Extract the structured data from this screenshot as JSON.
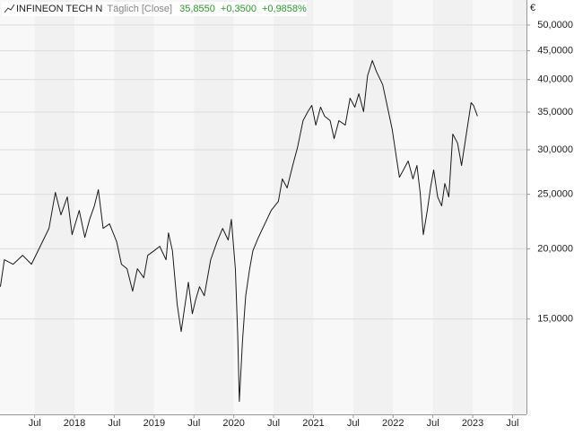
{
  "chart_data": {
    "type": "line",
    "title": "INFINEON TECH N",
    "subtitle": "Täglich [Close]",
    "annotations": [
      "35,8550",
      "+0,3500",
      "+0,9858%"
    ],
    "ylabel": "€",
    "log_scale": true,
    "grid": true,
    "xlim": [
      2017.065,
      2023.675
    ],
    "ylim": [
      10.15,
      55.4
    ],
    "xticks": [
      {
        "value": 2017.5,
        "label": "Jul"
      },
      {
        "value": 2018,
        "label": "2018"
      },
      {
        "value": 2018.5,
        "label": "Jul"
      },
      {
        "value": 2019,
        "label": "2019"
      },
      {
        "value": 2019.5,
        "label": "Jul"
      },
      {
        "value": 2020,
        "label": "2020"
      },
      {
        "value": 2020.5,
        "label": "Jul"
      },
      {
        "value": 2021,
        "label": "2021"
      },
      {
        "value": 2021.5,
        "label": "Jul"
      },
      {
        "value": 2022,
        "label": "2022"
      },
      {
        "value": 2022.5,
        "label": "Jul"
      },
      {
        "value": 2023,
        "label": "2023"
      },
      {
        "value": 2023.5,
        "label": "Jul"
      }
    ],
    "yticks": [
      {
        "value": 15,
        "label": "15,0000"
      },
      {
        "value": 20,
        "label": "20,0000"
      },
      {
        "value": 25,
        "label": "25,0000"
      },
      {
        "value": 30,
        "label": "30,0000"
      },
      {
        "value": 35,
        "label": "35,0000"
      },
      {
        "value": 40,
        "label": "40,0000"
      },
      {
        "value": 45,
        "label": "45,0000"
      },
      {
        "value": 50,
        "label": "50,0000"
      }
    ],
    "x": [
      2017.07,
      2017.12,
      2017.23,
      2017.35,
      2017.46,
      2017.57,
      2017.68,
      2017.76,
      2017.83,
      2017.91,
      2017.97,
      2018.06,
      2018.13,
      2018.19,
      2018.25,
      2018.3,
      2018.36,
      2018.44,
      2018.53,
      2018.59,
      2018.66,
      2018.73,
      2018.79,
      2018.87,
      2018.92,
      2019.0,
      2019.07,
      2019.15,
      2019.18,
      2019.23,
      2019.29,
      2019.34,
      2019.38,
      2019.43,
      2019.48,
      2019.52,
      2019.57,
      2019.63,
      2019.71,
      2019.79,
      2019.86,
      2019.93,
      2019.97,
      2020.02,
      2020.05,
      2020.07,
      2020.11,
      2020.15,
      2020.2,
      2020.24,
      2020.31,
      2020.39,
      2020.47,
      2020.56,
      2020.61,
      2020.67,
      2020.74,
      2020.8,
      2020.87,
      2020.93,
      2020.98,
      2021.03,
      2021.09,
      2021.14,
      2021.21,
      2021.26,
      2021.32,
      2021.4,
      2021.46,
      2021.52,
      2021.57,
      2021.63,
      2021.68,
      2021.74,
      2021.79,
      2021.87,
      2021.93,
      2021.99,
      2022.04,
      2022.08,
      2022.13,
      2022.19,
      2022.25,
      2022.3,
      2022.34,
      2022.38,
      2022.43,
      2022.47,
      2022.51,
      2022.56,
      2022.61,
      2022.65,
      2022.7,
      2022.75,
      2022.81,
      2022.86,
      2022.92,
      2022.98,
      2023.01,
      2023.06
    ],
    "series": [
      {
        "color": "#1a1a1a",
        "values": [
          17.12,
          19.12,
          18.77,
          19.47,
          18.77,
          20.2,
          21.74,
          25.19,
          22.98,
          24.73,
          21.19,
          23.4,
          20.96,
          22.56,
          23.84,
          25.47,
          21.74,
          22.15,
          20.58,
          18.77,
          18.43,
          16.81,
          18.43,
          17.76,
          19.47,
          19.84,
          20.2,
          19.12,
          21.35,
          19.84,
          15.91,
          14.25,
          15.62,
          17.44,
          15.33,
          16.2,
          17.12,
          16.5,
          19.12,
          20.58,
          21.74,
          20.73,
          22.56,
          18.43,
          13.99,
          10.7,
          13.73,
          16.5,
          18.43,
          19.84,
          20.96,
          22.15,
          23.4,
          24.28,
          26.62,
          25.66,
          28.13,
          30.27,
          33.8,
          35.07,
          35.98,
          33.19,
          35.72,
          34.43,
          33.8,
          31.41,
          33.8,
          33.19,
          37.06,
          35.72,
          37.74,
          35.07,
          40.62,
          43.24,
          41.38,
          39.16,
          35.72,
          32.58,
          29.18,
          26.81,
          27.62,
          28.65,
          26.62,
          28.13,
          25.19,
          21.19,
          23.4,
          25.66,
          27.62,
          24.73,
          23.84,
          26.13,
          24.73,
          31.99,
          30.83,
          28.13,
          31.99,
          36.38,
          35.98,
          34.43
        ]
      }
    ]
  }
}
